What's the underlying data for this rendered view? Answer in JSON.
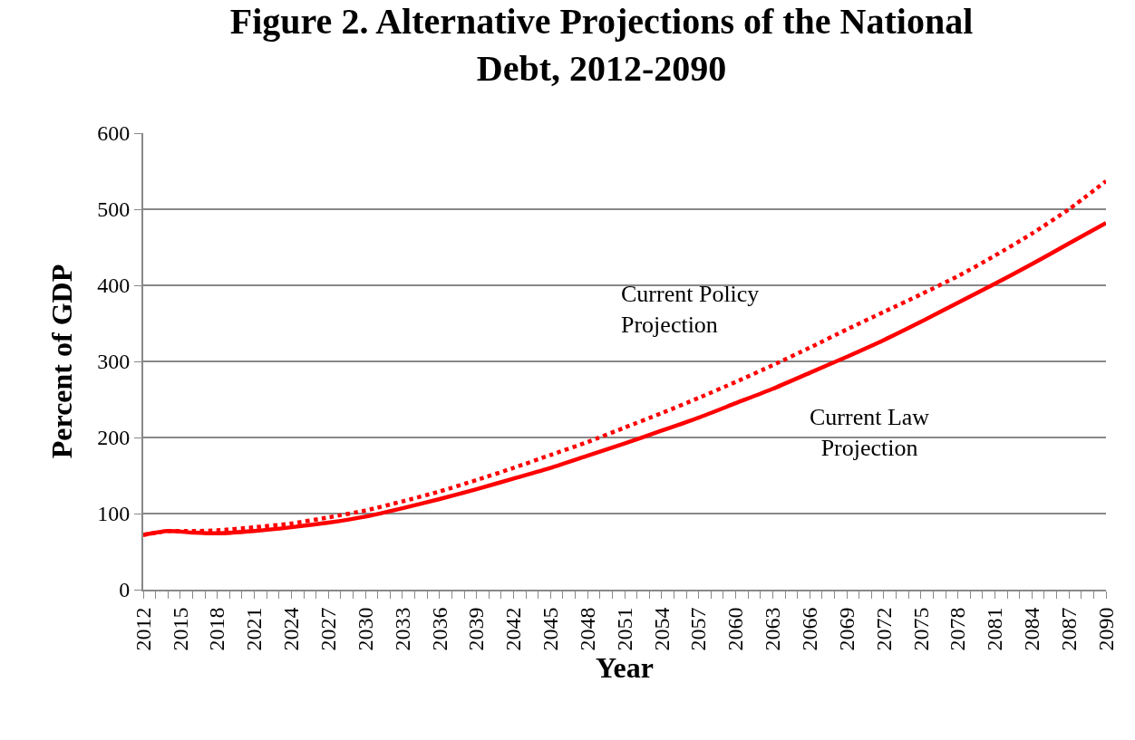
{
  "chart_data": {
    "type": "line",
    "title": "Figure 2. Alternative Projections of the National\nDebt, 2012-2090",
    "xlabel": "Year",
    "ylabel": "Percent of GDP",
    "x": [
      2012,
      2014,
      2016,
      2018,
      2021,
      2024,
      2027,
      2030,
      2033,
      2036,
      2039,
      2042,
      2045,
      2048,
      2051,
      2054,
      2057,
      2060,
      2063,
      2066,
      2069,
      2072,
      2075,
      2078,
      2081,
      2084,
      2087,
      2090
    ],
    "series": [
      {
        "name": "Current Policy\nProjection",
        "color": "#ff0000",
        "line_style": "dotted",
        "values": [
          72,
          77,
          77,
          78,
          82,
          87,
          95,
          104,
          116,
          129,
          144,
          160,
          177,
          194,
          213,
          232,
          252,
          273,
          295,
          318,
          342,
          365,
          388,
          412,
          439,
          468,
          500,
          537
        ]
      },
      {
        "name": "Current Law\nProjection",
        "color": "#ff0000",
        "line_style": "solid",
        "values": [
          72,
          77,
          75,
          74,
          77,
          82,
          88,
          96,
          107,
          119,
          132,
          146,
          160,
          176,
          192,
          209,
          226,
          245,
          264,
          285,
          306,
          328,
          352,
          377,
          402,
          428,
          455,
          482
        ]
      }
    ],
    "xlim": [
      2012,
      2090
    ],
    "xticks": [
      2012,
      2015,
      2018,
      2021,
      2024,
      2027,
      2030,
      2033,
      2036,
      2039,
      2042,
      2045,
      2048,
      2051,
      2054,
      2057,
      2060,
      2063,
      2066,
      2069,
      2072,
      2075,
      2078,
      2081,
      2084,
      2087,
      2090
    ],
    "ylim": [
      0,
      600
    ],
    "yticks": [
      0,
      100,
      200,
      300,
      400,
      500,
      600
    ],
    "grid": "y",
    "legend": false,
    "marker": "none"
  }
}
